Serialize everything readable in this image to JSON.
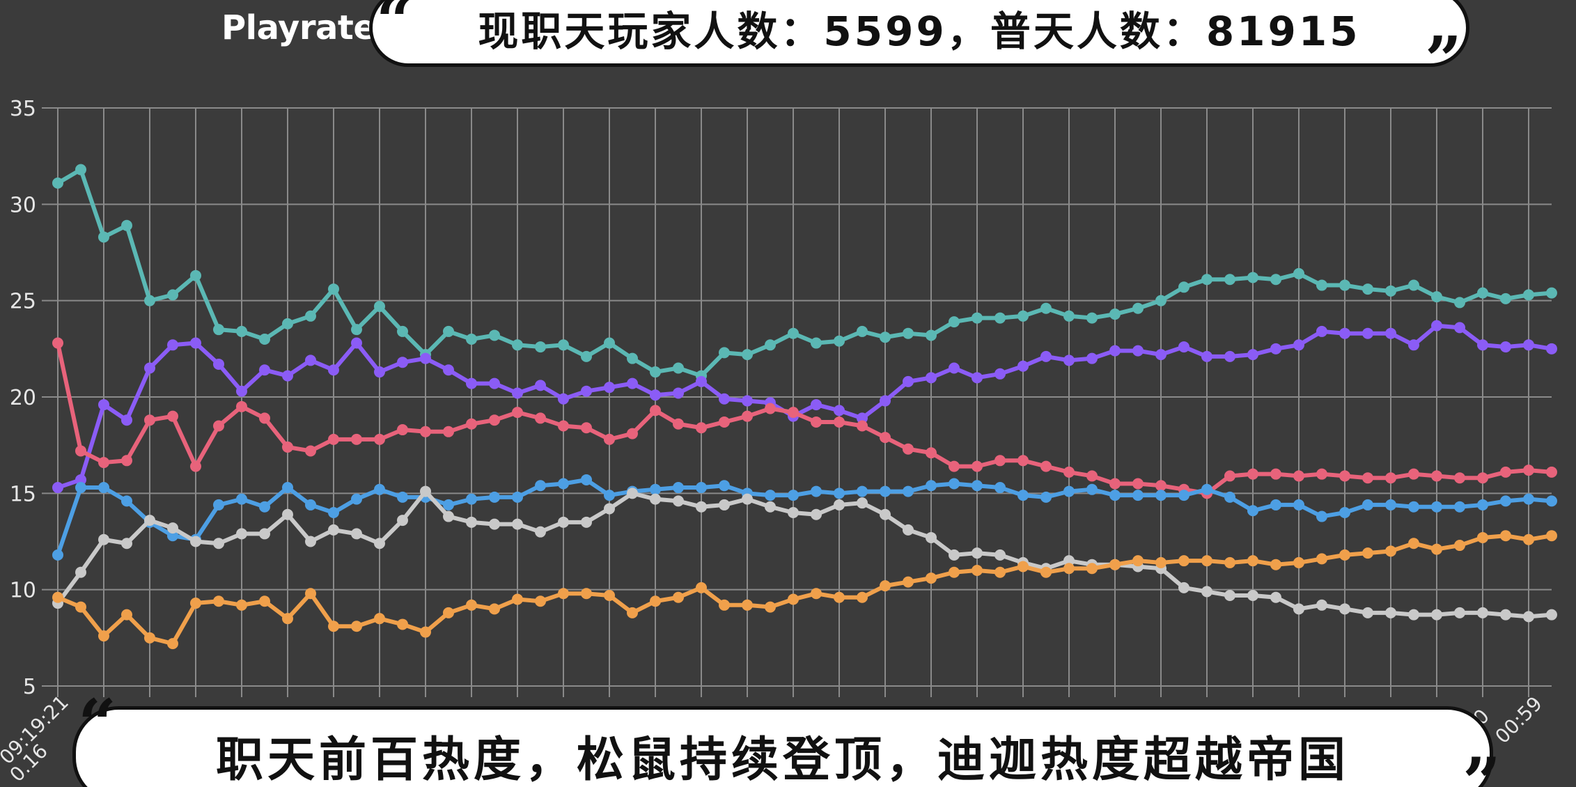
{
  "chart_data": {
    "type": "line",
    "title": "Playrate",
    "ylim": [
      5,
      35
    ],
    "yticks": [
      5,
      10,
      15,
      20,
      25,
      30,
      35
    ],
    "grid": true,
    "x_tick_labels": [
      "09:19:21",
      "0.16",
      "0",
      "00:59"
    ],
    "series": [
      {
        "color": "#5bb8b4",
        "values": [
          31.1,
          31.8,
          28.3,
          28.9,
          25.0,
          25.3,
          26.3,
          23.5,
          23.4,
          23.0,
          23.8,
          24.2,
          25.6,
          23.5,
          24.7,
          23.4,
          22.2,
          23.4,
          23.0,
          23.2,
          22.7,
          22.6,
          22.7,
          22.1,
          22.8,
          22.0,
          21.3,
          21.5,
          21.1,
          22.3,
          22.2,
          22.7,
          23.3,
          22.8,
          22.9,
          23.4,
          23.1,
          23.3,
          23.2,
          23.9,
          24.1,
          24.1,
          24.2,
          24.6,
          24.2,
          24.1,
          24.3,
          24.6,
          25.0,
          25.7,
          26.1,
          26.1,
          26.2,
          26.1,
          26.4,
          25.8,
          25.8,
          25.6,
          25.5,
          25.8,
          25.2,
          24.9,
          25.4,
          25.1,
          25.3,
          25.4
        ]
      },
      {
        "color": "#8b5cf6",
        "values": [
          15.3,
          15.7,
          19.6,
          18.8,
          21.5,
          22.7,
          22.8,
          21.7,
          20.3,
          21.4,
          21.1,
          21.9,
          21.4,
          22.8,
          21.3,
          21.8,
          22.0,
          21.4,
          20.7,
          20.7,
          20.2,
          20.6,
          19.9,
          20.3,
          20.5,
          20.7,
          20.1,
          20.2,
          20.8,
          19.9,
          19.8,
          19.7,
          19.0,
          19.6,
          19.3,
          18.9,
          19.8,
          20.8,
          21.0,
          21.5,
          21.0,
          21.2,
          21.6,
          22.1,
          21.9,
          22.0,
          22.4,
          22.4,
          22.2,
          22.6,
          22.1,
          22.1,
          22.2,
          22.5,
          22.7,
          23.4,
          23.3,
          23.3,
          23.3,
          22.7,
          23.7,
          23.6,
          22.7,
          22.6,
          22.7,
          22.5
        ]
      },
      {
        "color": "#e8637b",
        "values": [
          22.8,
          17.2,
          16.6,
          16.7,
          18.8,
          19.0,
          16.4,
          18.5,
          19.5,
          18.9,
          17.4,
          17.2,
          17.8,
          17.8,
          17.8,
          18.3,
          18.2,
          18.2,
          18.6,
          18.8,
          19.2,
          18.9,
          18.5,
          18.4,
          17.8,
          18.1,
          19.3,
          18.6,
          18.4,
          18.7,
          19.0,
          19.4,
          19.2,
          18.7,
          18.7,
          18.5,
          17.9,
          17.3,
          17.1,
          16.4,
          16.4,
          16.7,
          16.7,
          16.4,
          16.1,
          15.9,
          15.5,
          15.5,
          15.4,
          15.2,
          15.0,
          15.9,
          16.0,
          16.0,
          15.9,
          16.0,
          15.9,
          15.8,
          15.8,
          16.0,
          15.9,
          15.8,
          15.8,
          16.1,
          16.2,
          16.1
        ]
      },
      {
        "color": "#4d9fe4",
        "values": [
          11.8,
          15.3,
          15.3,
          14.6,
          13.5,
          12.8,
          12.6,
          14.4,
          14.7,
          14.3,
          15.3,
          14.4,
          14.0,
          14.7,
          15.2,
          14.8,
          14.8,
          14.4,
          14.7,
          14.8,
          14.8,
          15.4,
          15.5,
          15.7,
          14.9,
          15.1,
          15.2,
          15.3,
          15.3,
          15.4,
          15.0,
          14.9,
          14.9,
          15.1,
          15.0,
          15.1,
          15.1,
          15.1,
          15.4,
          15.5,
          15.4,
          15.3,
          14.9,
          14.8,
          15.1,
          15.2,
          14.9,
          14.9,
          14.9,
          14.9,
          15.2,
          14.8,
          14.1,
          14.4,
          14.4,
          13.8,
          14.0,
          14.4,
          14.4,
          14.3,
          14.3,
          14.3,
          14.4,
          14.6,
          14.7,
          14.6
        ]
      },
      {
        "color": "#c9c9c9",
        "values": [
          9.3,
          10.9,
          12.6,
          12.4,
          13.6,
          13.2,
          12.5,
          12.4,
          12.9,
          12.9,
          13.9,
          12.5,
          13.1,
          12.9,
          12.4,
          13.6,
          15.1,
          13.8,
          13.5,
          13.4,
          13.4,
          13.0,
          13.5,
          13.5,
          14.2,
          15.0,
          14.7,
          14.6,
          14.3,
          14.4,
          14.7,
          14.3,
          14.0,
          13.9,
          14.4,
          14.5,
          13.9,
          13.1,
          12.7,
          11.8,
          11.9,
          11.8,
          11.4,
          11.1,
          11.5,
          11.3,
          11.3,
          11.2,
          11.1,
          10.1,
          9.9,
          9.7,
          9.7,
          9.6,
          9.0,
          9.2,
          9.0,
          8.8,
          8.8,
          8.7,
          8.7,
          8.8,
          8.8,
          8.7,
          8.6,
          8.7
        ]
      },
      {
        "color": "#f0a04b",
        "values": [
          9.6,
          9.1,
          7.6,
          8.7,
          7.5,
          7.2,
          9.3,
          9.4,
          9.2,
          9.4,
          8.5,
          9.8,
          8.1,
          8.1,
          8.5,
          8.2,
          7.8,
          8.8,
          9.2,
          9.0,
          9.5,
          9.4,
          9.8,
          9.8,
          9.7,
          8.8,
          9.4,
          9.6,
          10.1,
          9.2,
          9.2,
          9.1,
          9.5,
          9.8,
          9.6,
          9.6,
          10.2,
          10.4,
          10.6,
          10.9,
          11.0,
          10.9,
          11.2,
          10.9,
          11.1,
          11.1,
          11.3,
          11.5,
          11.4,
          11.5,
          11.5,
          11.4,
          11.5,
          11.3,
          11.4,
          11.6,
          11.8,
          11.9,
          12.0,
          12.4,
          12.1,
          12.3,
          12.7,
          12.8,
          12.6,
          12.8
        ]
      }
    ]
  },
  "banners": {
    "top": "现职天玩家人数：5599，普天人数：81915",
    "bottom": "职天前百热度，松鼠持续登顶，迪迦热度超越帝国"
  }
}
